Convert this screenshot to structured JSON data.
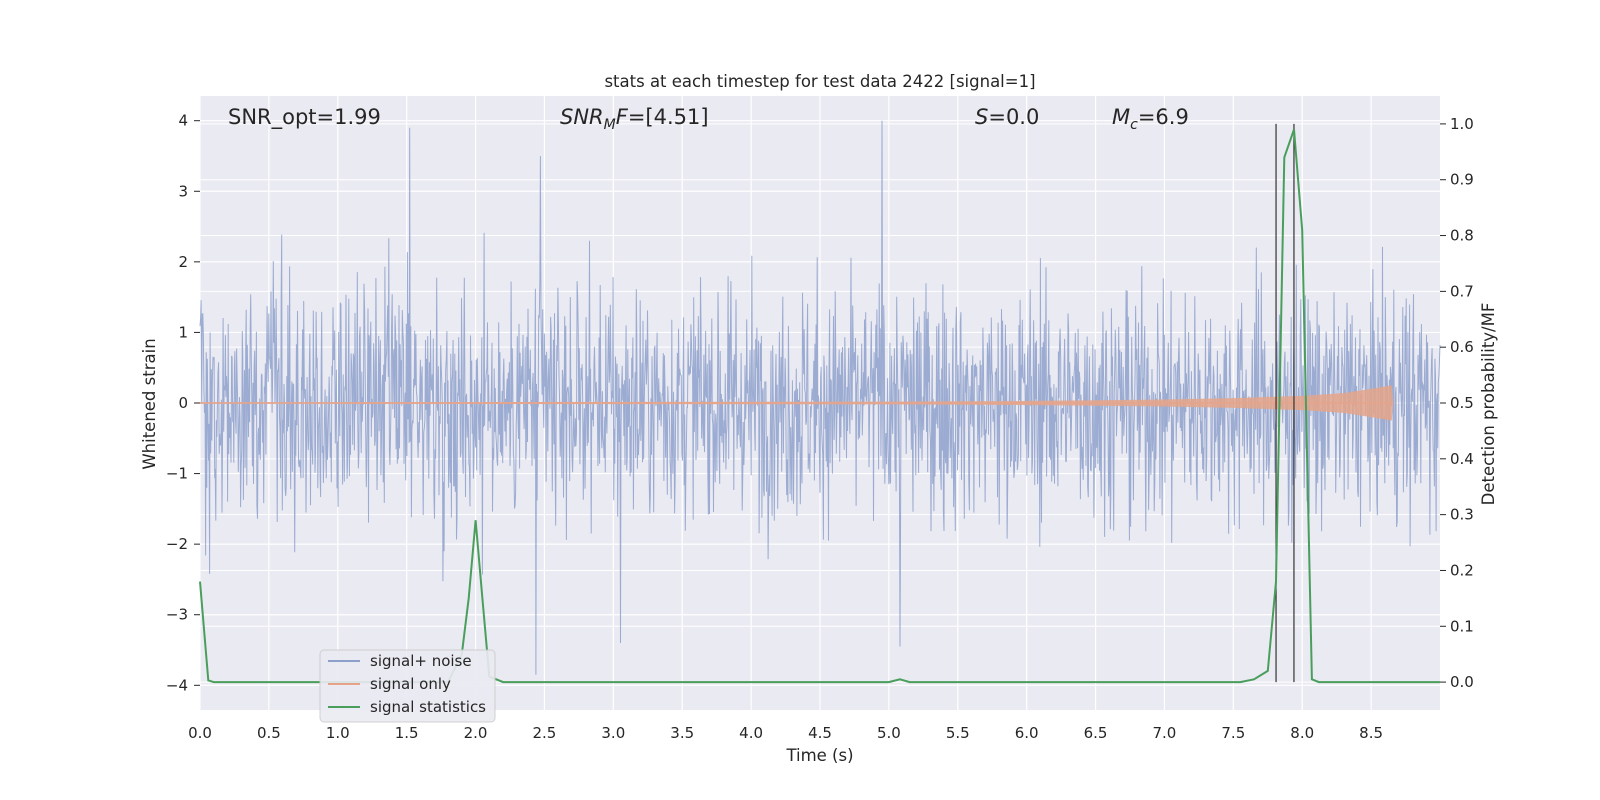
{
  "chart_data": {
    "type": "line",
    "title": "stats at each timestep for test data 2422 [signal=1]",
    "xlabel": "Time (s)",
    "ylabel_left": "Whitened strain",
    "ylabel_right": "Detection probability/MF",
    "xlim": [
      0.0,
      9.0
    ],
    "ylim_left": [
      -4.35,
      4.35
    ],
    "ylim_right": [
      -0.05,
      1.05
    ],
    "x_ticks": [
      "0.0",
      "0.5",
      "1.0",
      "1.5",
      "2.0",
      "2.5",
      "3.0",
      "3.5",
      "4.0",
      "4.5",
      "5.0",
      "5.5",
      "6.0",
      "6.5",
      "7.0",
      "7.5",
      "8.0",
      "8.5"
    ],
    "y_left_ticks": [
      "4",
      "3",
      "2",
      "1",
      "0",
      "−1",
      "−2",
      "−3",
      "−4"
    ],
    "y_left_tick_values": [
      4,
      3,
      2,
      1,
      0,
      -1,
      -2,
      -3,
      -4
    ],
    "y_right_ticks": [
      "1.0",
      "0.9",
      "0.8",
      "0.7",
      "0.6",
      "0.5",
      "0.4",
      "0.3",
      "0.2",
      "0.1",
      "0.0"
    ],
    "y_right_tick_values": [
      1.0,
      0.9,
      0.8,
      0.7,
      0.6,
      0.5,
      0.4,
      0.3,
      0.2,
      0.1,
      0.0
    ],
    "grid": true,
    "legend_position": "lower-left",
    "annotations": [
      {
        "text": "SNR_opt=1.99"
      },
      {
        "text": "SNR_MF=[4.51]"
      },
      {
        "text": "S=0.0"
      },
      {
        "text": "M_c=6.9"
      }
    ],
    "noise_envelope": {
      "description_values": "approximate band of whitened strain",
      "typical_range": [
        -2.0,
        2.0
      ],
      "max": 4.0,
      "min": -3.85
    },
    "vertical_lines": [
      7.81,
      7.94
    ],
    "series": [
      {
        "name": "signal+ noise",
        "color": "#8da0cb",
        "axis": "left",
        "peaks": [
          {
            "x": 1.52,
            "y": 3.9
          },
          {
            "x": 2.47,
            "y": 3.5
          },
          {
            "x": 4.95,
            "y": 4.0
          },
          {
            "x": 2.44,
            "y": -3.85
          },
          {
            "x": 5.08,
            "y": -3.45
          },
          {
            "x": 3.05,
            "y": -3.4
          }
        ]
      },
      {
        "name": "signal only",
        "color": "#e5a48a",
        "axis": "left",
        "x": [
          0.0,
          5.0,
          6.0,
          7.0,
          7.5,
          8.0,
          8.3,
          8.5,
          8.65,
          8.66
        ],
        "amplitude": [
          0.01,
          0.02,
          0.03,
          0.05,
          0.07,
          0.1,
          0.14,
          0.2,
          0.25,
          0.0
        ]
      },
      {
        "name": "signal statistics",
        "color": "#4a9e5c",
        "axis": "right",
        "x": [
          0.0,
          0.06,
          0.1,
          0.2,
          1.8,
          1.9,
          1.95,
          2.0,
          2.05,
          2.1,
          2.2,
          5.0,
          5.08,
          5.15,
          7.55,
          7.65,
          7.75,
          7.81,
          7.87,
          7.94,
          8.0,
          8.07,
          8.12,
          8.2,
          9.0
        ],
        "y": [
          0.18,
          0.003,
          0.0,
          0.0,
          0.0,
          0.05,
          0.15,
          0.29,
          0.15,
          0.01,
          0.0,
          0.0,
          0.005,
          0.0,
          0.0,
          0.005,
          0.02,
          0.18,
          0.94,
          0.99,
          0.81,
          0.005,
          0.0,
          0.0,
          0.0
        ]
      }
    ]
  }
}
